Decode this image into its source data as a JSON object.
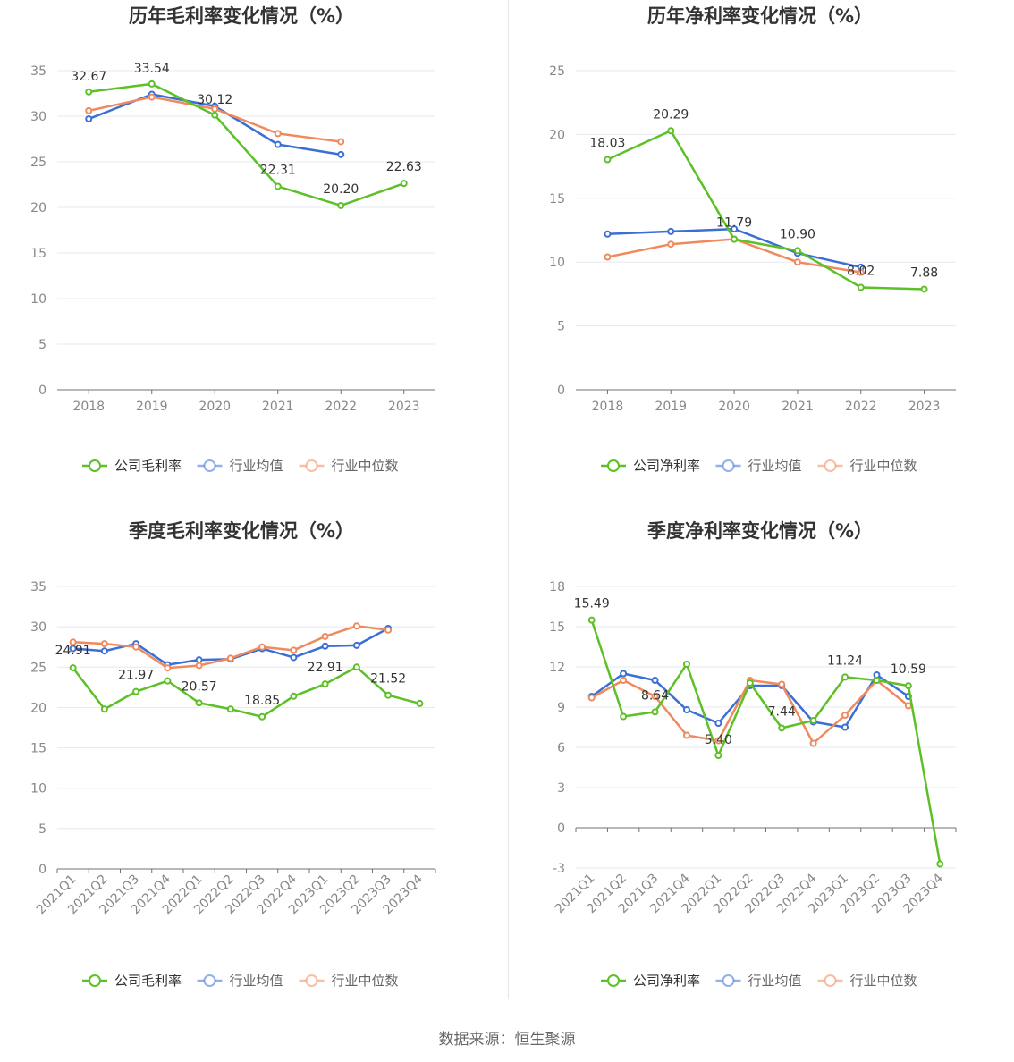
{
  "colors": {
    "company": "#5cc026",
    "industry_avg": "#3b6fd6",
    "industry_median": "#f08a5d",
    "grid": "#e5e8ef",
    "axis": "#6e7079",
    "text": "#333333",
    "tick": "#888888"
  },
  "footer": {
    "label": "数据来源：",
    "source": "恒生聚源"
  },
  "chart_data": [
    {
      "type": "line",
      "title": "历年毛利率变化情况（%）",
      "categories": [
        "2018",
        "2019",
        "2020",
        "2021",
        "2022",
        "2023"
      ],
      "ylim": [
        0,
        35
      ],
      "yticks": [
        0,
        5,
        10,
        15,
        20,
        25,
        30,
        35
      ],
      "grid": true,
      "legend": "bottom",
      "series": [
        {
          "name": "公司毛利率",
          "key": "company",
          "values": [
            32.67,
            33.54,
            30.12,
            22.31,
            20.2,
            22.63
          ],
          "labels": [
            "32.67",
            "33.54",
            "30.12",
            "22.31",
            "20.20",
            "22.63"
          ]
        },
        {
          "name": "行业均值",
          "key": "industry_avg",
          "values": [
            29.7,
            32.4,
            31.1,
            26.9,
            25.8,
            null
          ]
        },
        {
          "name": "行业中位数",
          "key": "industry_median",
          "values": [
            30.6,
            32.1,
            30.8,
            28.1,
            27.2,
            null
          ]
        }
      ]
    },
    {
      "type": "line",
      "title": "历年净利率变化情况（%）",
      "categories": [
        "2018",
        "2019",
        "2020",
        "2021",
        "2022",
        "2023"
      ],
      "ylim": [
        0,
        25
      ],
      "yticks": [
        0,
        5,
        10,
        15,
        20,
        25
      ],
      "grid": true,
      "legend": "bottom",
      "series": [
        {
          "name": "公司净利率",
          "key": "company",
          "values": [
            18.03,
            20.29,
            11.79,
            10.9,
            8.02,
            7.88
          ],
          "labels": [
            "18.03",
            "20.29",
            "11.79",
            "10.90",
            "8.02",
            "7.88"
          ]
        },
        {
          "name": "行业均值",
          "key": "industry_avg",
          "values": [
            12.2,
            12.4,
            12.6,
            10.7,
            9.6,
            null
          ]
        },
        {
          "name": "行业中位数",
          "key": "industry_median",
          "values": [
            10.4,
            11.4,
            11.8,
            10.0,
            9.2,
            null
          ]
        }
      ]
    },
    {
      "type": "line",
      "title": "季度毛利率变化情况（%）",
      "categories": [
        "2021Q1",
        "2021Q2",
        "2021Q3",
        "2021Q4",
        "2022Q1",
        "2022Q2",
        "2022Q3",
        "2022Q4",
        "2023Q1",
        "2023Q2",
        "2023Q3",
        "2023Q4"
      ],
      "ylim": [
        0,
        35
      ],
      "yticks": [
        0,
        5,
        10,
        15,
        20,
        25,
        30,
        35
      ],
      "grid": true,
      "legend": "bottom",
      "series": [
        {
          "name": "公司毛利率",
          "key": "company",
          "values": [
            24.91,
            19.8,
            21.97,
            23.3,
            20.57,
            19.8,
            18.85,
            21.4,
            22.91,
            25.0,
            21.52,
            20.5
          ],
          "labels": [
            "24.91",
            null,
            "21.97",
            null,
            "20.57",
            null,
            "18.85",
            null,
            "22.91",
            null,
            "21.52",
            null
          ]
        },
        {
          "name": "行业均值",
          "key": "industry_avg",
          "values": [
            27.3,
            27.0,
            27.9,
            25.3,
            25.9,
            26.0,
            27.3,
            26.2,
            27.6,
            27.7,
            29.8,
            null
          ]
        },
        {
          "name": "行业中位数",
          "key": "industry_median",
          "values": [
            28.1,
            27.9,
            27.5,
            24.9,
            25.2,
            26.1,
            27.5,
            27.1,
            28.8,
            30.1,
            29.6,
            null
          ]
        }
      ]
    },
    {
      "type": "line",
      "title": "季度净利率变化情况（%）",
      "categories": [
        "2021Q1",
        "2021Q2",
        "2021Q3",
        "2021Q4",
        "2022Q1",
        "2022Q2",
        "2022Q3",
        "2022Q4",
        "2023Q1",
        "2023Q2",
        "2023Q3",
        "2023Q4"
      ],
      "ylim": [
        -3,
        18
      ],
      "yticks": [
        -3,
        0,
        3,
        6,
        9,
        12,
        15,
        18
      ],
      "grid": true,
      "legend": "bottom",
      "series": [
        {
          "name": "公司净利率",
          "key": "company",
          "values": [
            15.49,
            8.3,
            8.64,
            12.2,
            5.4,
            10.8,
            7.44,
            8.0,
            11.24,
            11.0,
            10.59,
            -2.7
          ],
          "labels": [
            "15.49",
            null,
            "8.64",
            null,
            "5.40",
            null,
            "7.44",
            null,
            "11.24",
            null,
            "10.59",
            null
          ]
        },
        {
          "name": "行业均值",
          "key": "industry_avg",
          "values": [
            9.8,
            11.5,
            11.0,
            8.8,
            7.8,
            10.6,
            10.6,
            7.9,
            7.5,
            11.4,
            9.8,
            null
          ]
        },
        {
          "name": "行业中位数",
          "key": "industry_median",
          "values": [
            9.7,
            11.0,
            9.8,
            6.9,
            6.5,
            11.0,
            10.7,
            6.3,
            8.4,
            11.0,
            9.1,
            null
          ]
        }
      ]
    }
  ]
}
